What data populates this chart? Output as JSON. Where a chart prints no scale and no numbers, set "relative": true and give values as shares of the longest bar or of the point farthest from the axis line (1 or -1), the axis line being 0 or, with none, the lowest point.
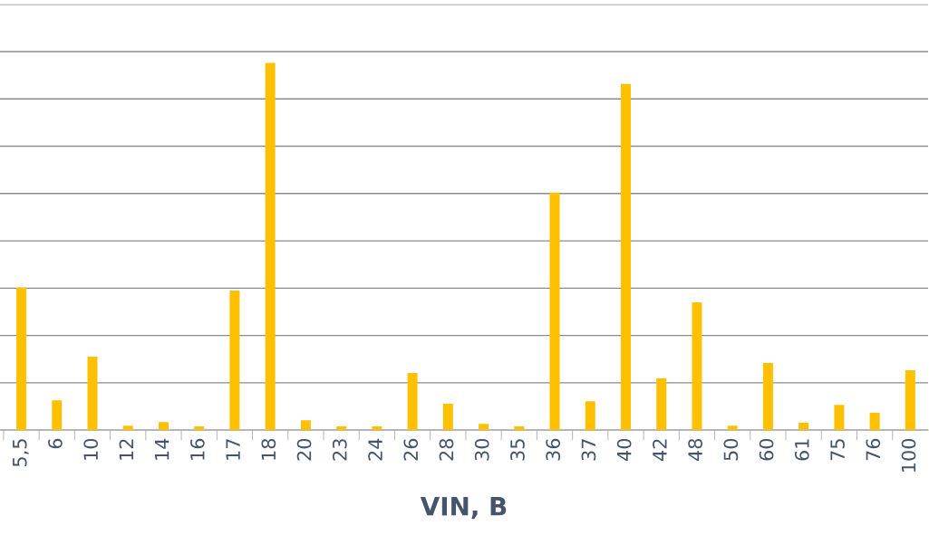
{
  "chart_data": {
    "type": "bar",
    "xlabel": "VIN, B",
    "relative": true,
    "grid": "y",
    "color": "#ffc000",
    "categories": [
      "5,5",
      "6",
      "10",
      "12",
      "14",
      "16",
      "17",
      "18",
      "20",
      "23",
      "24",
      "26",
      "28",
      "30",
      "35",
      "36",
      "37",
      "40",
      "42",
      "48",
      "50",
      "60",
      "61",
      "75",
      "76",
      "100"
    ],
    "values": [
      0.388,
      0.081,
      0.2,
      0.012,
      0.022,
      0.01,
      0.38,
      1,
      0.027,
      0.01,
      0.01,
      0.156,
      0.072,
      0.017,
      0.01,
      0.647,
      0.079,
      0.943,
      0.141,
      0.348,
      0.012,
      0.183,
      0.02,
      0.069,
      0.047,
      0.163
    ]
  }
}
